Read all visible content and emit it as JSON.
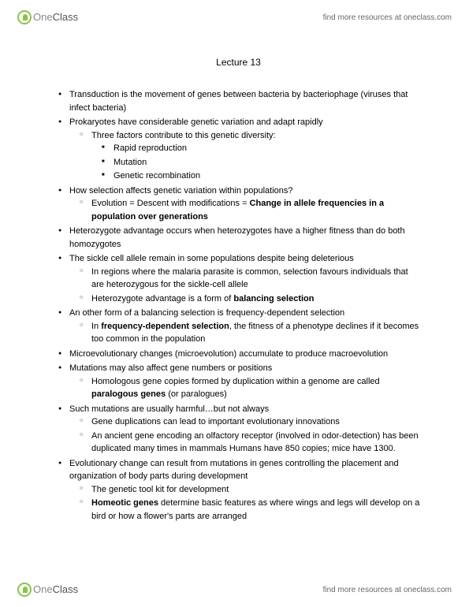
{
  "brand": {
    "one": "One",
    "class": "Class"
  },
  "tagline": "find more resources at oneclass.com",
  "title": "Lecture 13",
  "bullets": [
    {
      "t": "Transduction is the movement of genes between bacteria by bacteriophage (viruses that infect bacteria)"
    },
    {
      "t": "Prokaryotes have considerable genetic variation and adapt rapidly",
      "c": [
        {
          "t": "Three factors contribute to this genetic diversity:",
          "c": [
            {
              "t": "Rapid reproduction"
            },
            {
              "t": "Mutation"
            },
            {
              "t": "Genetic recombination"
            }
          ]
        }
      ]
    },
    {
      "t": "How selection affects genetic variation within populations?",
      "c": [
        {
          "html": "Evolution = Descent with modifications = <span class=\"b\">Change in allele frequencies in a population over generations</span>"
        }
      ]
    },
    {
      "t": "Heterozygote advantage occurs when heterozygotes have a higher fitness than do both homozygotes"
    },
    {
      "t": "The sickle cell allele remain in some populations despite being deleterious",
      "c": [
        {
          "t": "In regions where the malaria parasite is common, selection favours individuals that are heterozygous for the sickle-cell allele"
        },
        {
          "html": "Heterozygote advantage is a form of <span class=\"b\">balancing selection</span>"
        }
      ]
    },
    {
      "t": "An other form of a balancing selection is frequency-dependent selection",
      "c": [
        {
          "html": "In <span class=\"b\">frequency-dependent selection</span>, the fitness of a phenotype declines if it becomes too common in the population"
        }
      ]
    },
    {
      "t": "Microevolutionary changes (microevolution) accumulate to produce macroevolution"
    },
    {
      "t": "Mutations may also affect gene numbers or positions",
      "c": [
        {
          "html": "Homologous gene copies formed by duplication within a genome are called <span class=\"b\">paralogous genes</span> (or paralogues)"
        }
      ]
    },
    {
      "t": "Such mutations are usually harmful…but not always",
      "c": [
        {
          "t": "Gene duplications can lead to important evolutionary innovations"
        },
        {
          "t": "An ancient gene encoding an olfactory receptor (involved in odor-detection) has been duplicated many times in mammals Humans have 850 copies; mice have 1300."
        }
      ]
    },
    {
      "t": "Evolutionary change can result from mutations in genes controlling the placement and organization of body parts during development",
      "c": [
        {
          "t": "The genetic tool kit for development"
        },
        {
          "html": "<span class=\"b\">Homeotic genes</span> determine basic features as where wings and legs will develop on a bird or how a flower's parts are arranged"
        }
      ]
    }
  ]
}
